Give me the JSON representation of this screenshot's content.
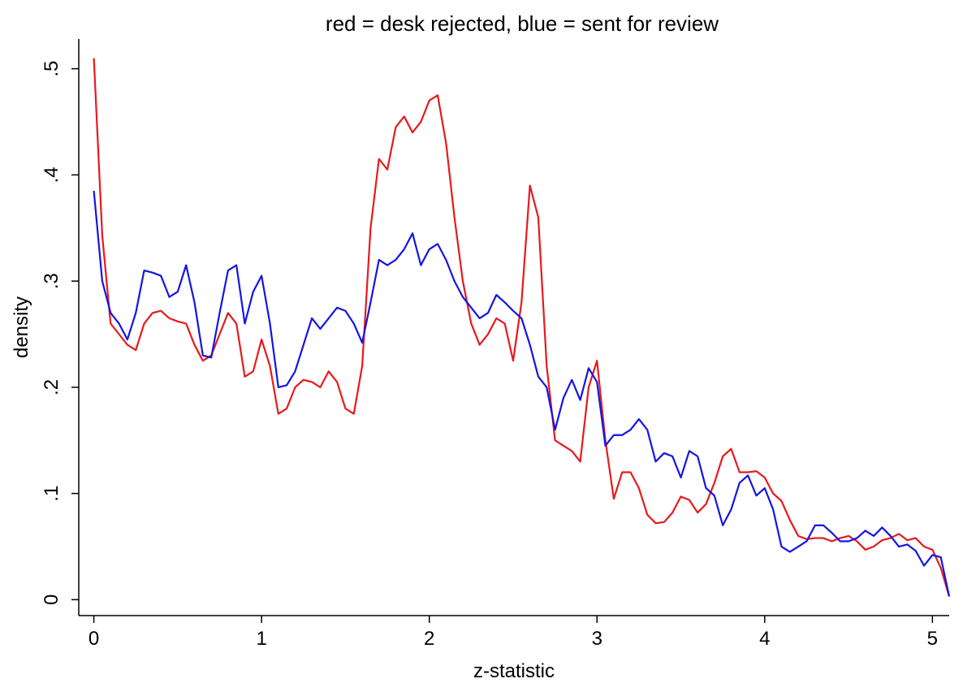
{
  "chart_data": {
    "type": "line",
    "title": "red = desk rejected, blue = sent for review",
    "xlabel": "z-statistic",
    "ylabel": "density",
    "x": [
      0,
      0.05,
      0.1,
      0.15,
      0.2,
      0.25,
      0.3,
      0.35,
      0.4,
      0.45,
      0.5,
      0.55,
      0.6,
      0.65,
      0.7,
      0.75,
      0.8,
      0.85,
      0.9,
      0.95,
      1,
      1.05,
      1.1,
      1.15,
      1.2,
      1.25,
      1.3,
      1.35,
      1.4,
      1.45,
      1.5,
      1.55,
      1.6,
      1.65,
      1.7,
      1.75,
      1.8,
      1.85,
      1.9,
      1.95,
      2,
      2.05,
      2.1,
      2.15,
      2.2,
      2.25,
      2.3,
      2.35,
      2.4,
      2.45,
      2.5,
      2.55,
      2.6,
      2.65,
      2.7,
      2.75,
      2.8,
      2.85,
      2.9,
      2.95,
      3,
      3.05,
      3.1,
      3.15,
      3.2,
      3.25,
      3.3,
      3.35,
      3.4,
      3.45,
      3.5,
      3.55,
      3.6,
      3.65,
      3.7,
      3.75,
      3.8,
      3.85,
      3.9,
      3.95,
      4,
      4.05,
      4.1,
      4.15,
      4.2,
      4.25,
      4.3,
      4.35,
      4.4,
      4.45,
      4.5,
      4.55,
      4.6,
      4.65,
      4.7,
      4.75,
      4.8,
      4.85,
      4.9,
      4.95,
      5,
      5.05,
      5.1
    ],
    "series": [
      {
        "color": "#e8191c",
        "values": [
          0.51,
          0.343,
          0.26,
          0.25,
          0.24,
          0.235,
          0.26,
          0.27,
          0.272,
          0.265,
          0.262,
          0.26,
          0.24,
          0.225,
          0.23,
          0.25,
          0.27,
          0.26,
          0.21,
          0.215,
          0.245,
          0.22,
          0.175,
          0.18,
          0.2,
          0.207,
          0.205,
          0.2,
          0.215,
          0.205,
          0.18,
          0.175,
          0.22,
          0.35,
          0.415,
          0.405,
          0.445,
          0.455,
          0.44,
          0.45,
          0.47,
          0.475,
          0.43,
          0.36,
          0.3,
          0.26,
          0.24,
          0.25,
          0.265,
          0.26,
          0.225,
          0.28,
          0.39,
          0.36,
          0.22,
          0.15,
          0.145,
          0.14,
          0.13,
          0.2,
          0.225,
          0.15,
          0.095,
          0.12,
          0.12,
          0.105,
          0.08,
          0.072,
          0.073,
          0.082,
          0.097,
          0.094,
          0.082,
          0.09,
          0.11,
          0.135,
          0.142,
          0.12,
          0.12,
          0.121,
          0.115,
          0.1,
          0.093,
          0.075,
          0.06,
          0.057,
          0.058,
          0.058,
          0.055,
          0.058,
          0.06,
          0.055,
          0.047,
          0.05,
          0.056,
          0.058,
          0.062,
          0.056,
          0.058,
          0.05,
          0.047,
          0.03,
          0.003
        ]
      },
      {
        "color": "#1414e6",
        "values": [
          0.385,
          0.3,
          0.27,
          0.26,
          0.245,
          0.27,
          0.31,
          0.308,
          0.305,
          0.285,
          0.29,
          0.315,
          0.28,
          0.23,
          0.228,
          0.27,
          0.31,
          0.315,
          0.26,
          0.29,
          0.305,
          0.26,
          0.2,
          0.202,
          0.215,
          0.24,
          0.265,
          0.255,
          0.265,
          0.275,
          0.272,
          0.26,
          0.242,
          0.28,
          0.32,
          0.315,
          0.32,
          0.33,
          0.345,
          0.315,
          0.33,
          0.335,
          0.32,
          0.3,
          0.285,
          0.275,
          0.265,
          0.27,
          0.287,
          0.28,
          0.272,
          0.265,
          0.24,
          0.21,
          0.2,
          0.16,
          0.19,
          0.207,
          0.188,
          0.218,
          0.205,
          0.145,
          0.155,
          0.155,
          0.16,
          0.17,
          0.16,
          0.13,
          0.138,
          0.135,
          0.115,
          0.14,
          0.135,
          0.105,
          0.098,
          0.07,
          0.085,
          0.11,
          0.117,
          0.098,
          0.105,
          0.085,
          0.05,
          0.045,
          0.05,
          0.055,
          0.07,
          0.07,
          0.063,
          0.055,
          0.055,
          0.058,
          0.065,
          0.06,
          0.068,
          0.06,
          0.05,
          0.052,
          0.046,
          0.032,
          0.042,
          0.04,
          0.003
        ]
      }
    ],
    "xlim": [
      -0.09,
      5.1
    ],
    "ylim": [
      -0.015,
      0.528
    ],
    "xticks": [
      0,
      1,
      2,
      3,
      4,
      5
    ],
    "yticks": [
      0,
      {
        "value": 0.1,
        "label": ".1"
      },
      {
        "value": 0.2,
        "label": ".2"
      },
      {
        "value": 0.3,
        "label": ".3"
      },
      {
        "value": 0.4,
        "label": ".4"
      },
      {
        "value": 0.5,
        "label": ".5"
      }
    ]
  }
}
